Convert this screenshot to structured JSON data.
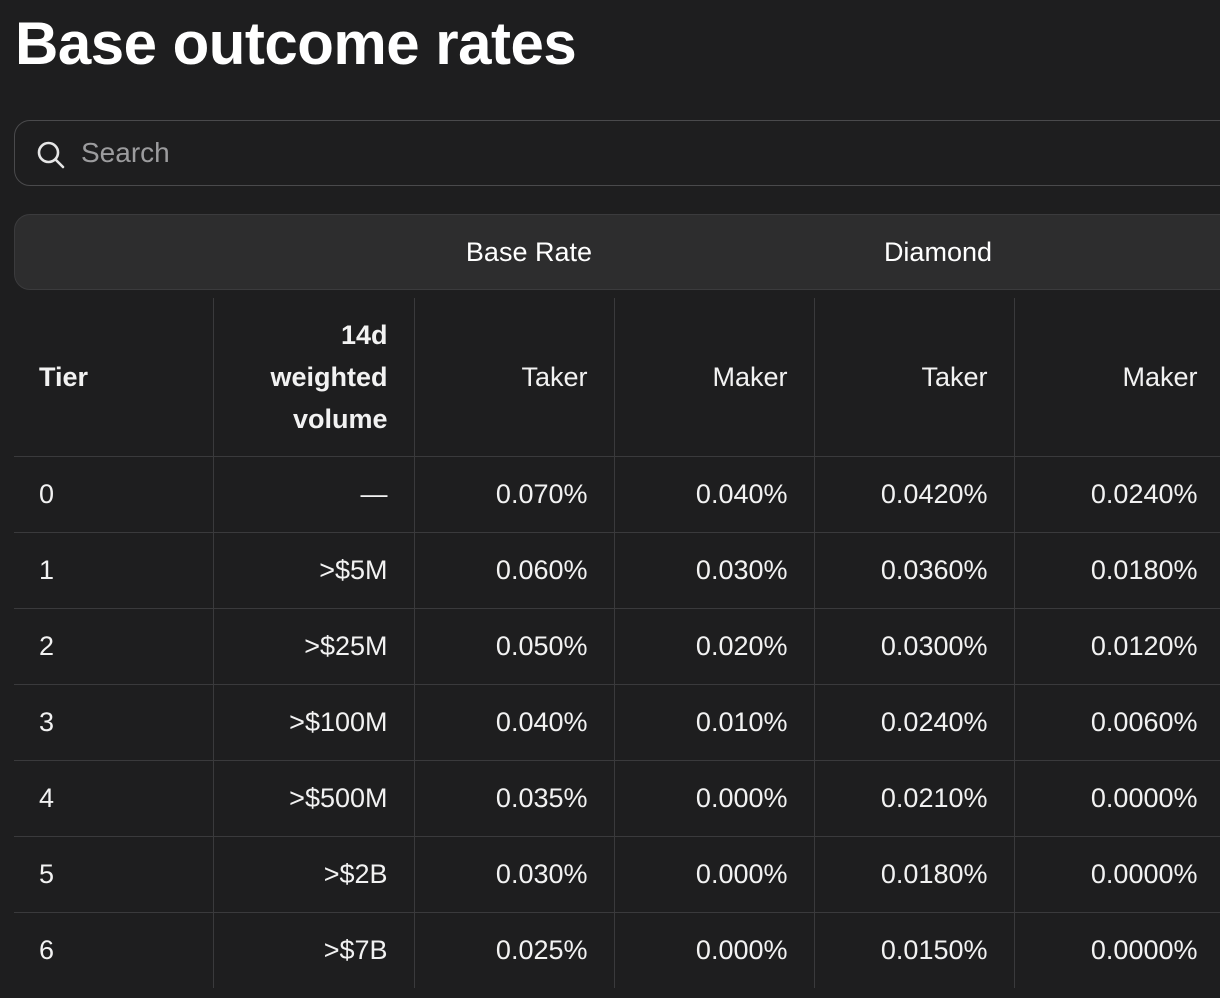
{
  "page": {
    "title": "Base outcome rates"
  },
  "search": {
    "placeholder": "Search",
    "icon": "search-icon"
  },
  "groups": {
    "base_rate": "Base Rate",
    "diamond": "Diamond"
  },
  "table": {
    "headers": {
      "tier": "Tier",
      "volume_line1": "14d",
      "volume_line2": "weighted",
      "volume_line3": "volume",
      "base_taker": "Taker",
      "base_maker": "Maker",
      "diamond_taker": "Taker",
      "diamond_maker": "Maker"
    },
    "rows": [
      {
        "tier": "0",
        "volume": "—",
        "base_taker": "0.070%",
        "base_maker": "0.040%",
        "diamond_taker": "0.0420%",
        "diamond_maker": "0.0240%"
      },
      {
        "tier": "1",
        "volume": ">$5M",
        "base_taker": "0.060%",
        "base_maker": "0.030%",
        "diamond_taker": "0.0360%",
        "diamond_maker": "0.0180%"
      },
      {
        "tier": "2",
        "volume": ">$25M",
        "base_taker": "0.050%",
        "base_maker": "0.020%",
        "diamond_taker": "0.0300%",
        "diamond_maker": "0.0120%"
      },
      {
        "tier": "3",
        "volume": ">$100M",
        "base_taker": "0.040%",
        "base_maker": "0.010%",
        "diamond_taker": "0.0240%",
        "diamond_maker": "0.0060%"
      },
      {
        "tier": "4",
        "volume": ">$500M",
        "base_taker": "0.035%",
        "base_maker": "0.000%",
        "diamond_taker": "0.0210%",
        "diamond_maker": "0.0000%"
      },
      {
        "tier": "5",
        "volume": ">$2B",
        "base_taker": "0.030%",
        "base_maker": "0.000%",
        "diamond_taker": "0.0180%",
        "diamond_maker": "0.0000%"
      },
      {
        "tier": "6",
        "volume": ">$7B",
        "base_taker": "0.025%",
        "base_maker": "0.000%",
        "diamond_taker": "0.0150%",
        "diamond_maker": "0.0000%"
      }
    ]
  }
}
